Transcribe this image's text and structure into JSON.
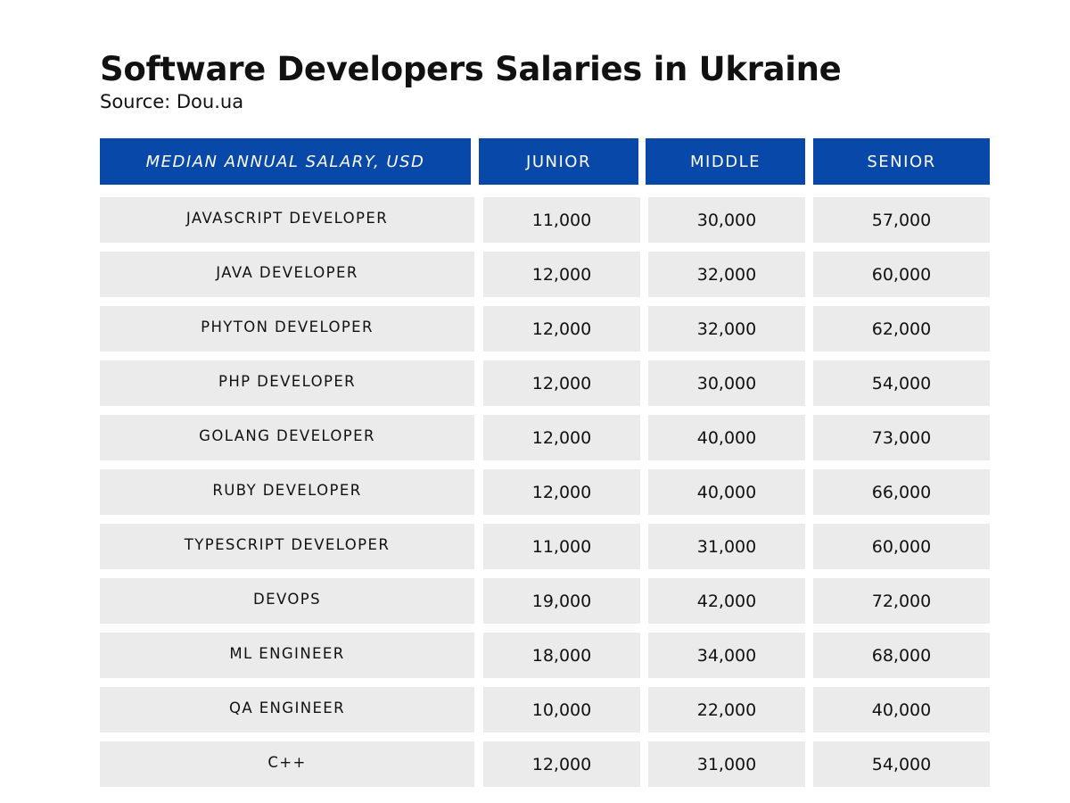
{
  "title": "Software Developers Salaries in Ukraine",
  "source": "Source: Dou.ua",
  "colors": {
    "header_bg": "#0848a8",
    "row_bg": "#ebebeb"
  },
  "table": {
    "headers": [
      "MEDIAN ANNUAL SALARY, USD",
      "JUNIOR",
      "MIDDLE",
      "SENIOR"
    ],
    "rows": [
      {
        "role": "JAVASCRIPT DEVELOPER",
        "junior": "11,000",
        "middle": "30,000",
        "senior": "57,000"
      },
      {
        "role": "JAVA DEVELOPER",
        "junior": "12,000",
        "middle": "32,000",
        "senior": "60,000"
      },
      {
        "role": "PHYTON DEVELOPER",
        "junior": "12,000",
        "middle": "32,000",
        "senior": "62,000"
      },
      {
        "role": "PHP DEVELOPER",
        "junior": "12,000",
        "middle": "30,000",
        "senior": "54,000"
      },
      {
        "role": "GOLANG DEVELOPER",
        "junior": "12,000",
        "middle": "40,000",
        "senior": "73,000"
      },
      {
        "role": "RUBY DEVELOPER",
        "junior": "12,000",
        "middle": "40,000",
        "senior": "66,000"
      },
      {
        "role": "TYPESCRIPT DEVELOPER",
        "junior": "11,000",
        "middle": "31,000",
        "senior": "60,000"
      },
      {
        "role": "DEVOPS",
        "junior": "19,000",
        "middle": "42,000",
        "senior": "72,000"
      },
      {
        "role": "ML ENGINEER",
        "junior": "18,000",
        "middle": "34,000",
        "senior": "68,000"
      },
      {
        "role": "QA ENGINEER",
        "junior": "10,000",
        "middle": "22,000",
        "senior": "40,000"
      },
      {
        "role": "C++",
        "junior": "12,000",
        "middle": "31,000",
        "senior": "54,000"
      }
    ]
  }
}
